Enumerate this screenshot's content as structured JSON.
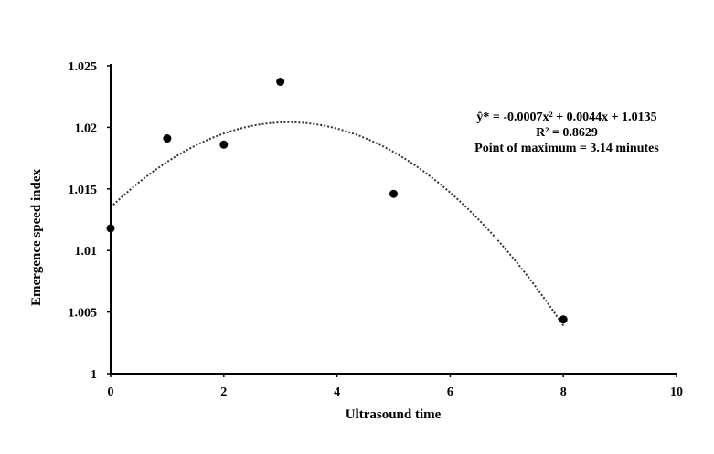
{
  "chart_data": {
    "type": "scatter",
    "xlabel": "Ultrasound time",
    "ylabel": "Emergence speed index",
    "xlim": [
      0,
      10
    ],
    "ylim": [
      1,
      1.025
    ],
    "x_ticks": [
      "0",
      "2",
      "4",
      "6",
      "8",
      "10"
    ],
    "y_ticks": [
      "1",
      "1.005",
      "1.01",
      "1.015",
      "1.02",
      "1.025"
    ],
    "series": [
      {
        "x": [
          0,
          1,
          2,
          3,
          5,
          8
        ],
        "y": [
          1.0118,
          1.0191,
          1.0186,
          1.0237,
          1.0146,
          1.0044
        ]
      }
    ],
    "trendline": {
      "type": "polynomial",
      "coefficients": [
        -0.0007,
        0.0044,
        1.0135
      ],
      "x_range": [
        0,
        8
      ]
    },
    "annotations": [
      "ŷ* = -0.0007x² + 0.0044x + 1.0135",
      "R² = 0.8629",
      "Point of maximum = 3.14  minutes"
    ],
    "grid": false,
    "legend": false
  }
}
